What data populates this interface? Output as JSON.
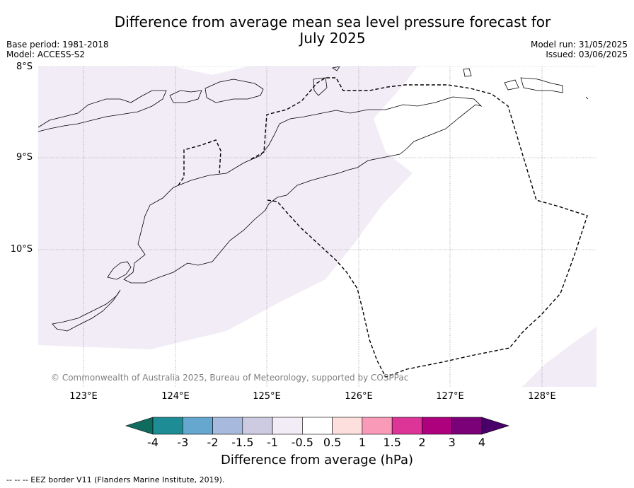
{
  "header": {
    "title_line1": "Difference from average mean sea level pressure forecast for",
    "title_line2": "July 2025",
    "base_period": "Base period: 1981-2018",
    "model": "Model: ACCESS-S2",
    "model_run": "Model run: 31/05/2025",
    "issued": "Issued: 03/06/2025"
  },
  "map": {
    "latitude_labels": [
      "8°S",
      "9°S",
      "10°S"
    ],
    "longitude_labels": [
      "123°E",
      "124°E",
      "125°E",
      "126°E",
      "127°E",
      "128°E"
    ],
    "copyright": "© Commonwealth of Australia 2025, Bureau of Meteorology, supported by COSPPac",
    "shading_color": "#f2ecf6",
    "eez_line_style": "dashed"
  },
  "colorbar": {
    "title": "Difference from average (hPa)",
    "ticks": [
      "-4",
      "-3",
      "-2",
      "-1.5",
      "-1",
      "-0.5",
      "0.5",
      "1",
      "1.5",
      "2",
      "3",
      "4"
    ],
    "colors": [
      "#0f6b5e",
      "#1d8c95",
      "#65a7cf",
      "#a7b9dc",
      "#cdcbe1",
      "#f2ecf6",
      "#ffffff",
      "#fde0dd",
      "#f99ab9",
      "#dd3497",
      "#ae017e",
      "#7a0177",
      "#49006a"
    ]
  },
  "footnote": "--  --  -- EEZ border V11 (Flanders Marine Institute, 2019)."
}
